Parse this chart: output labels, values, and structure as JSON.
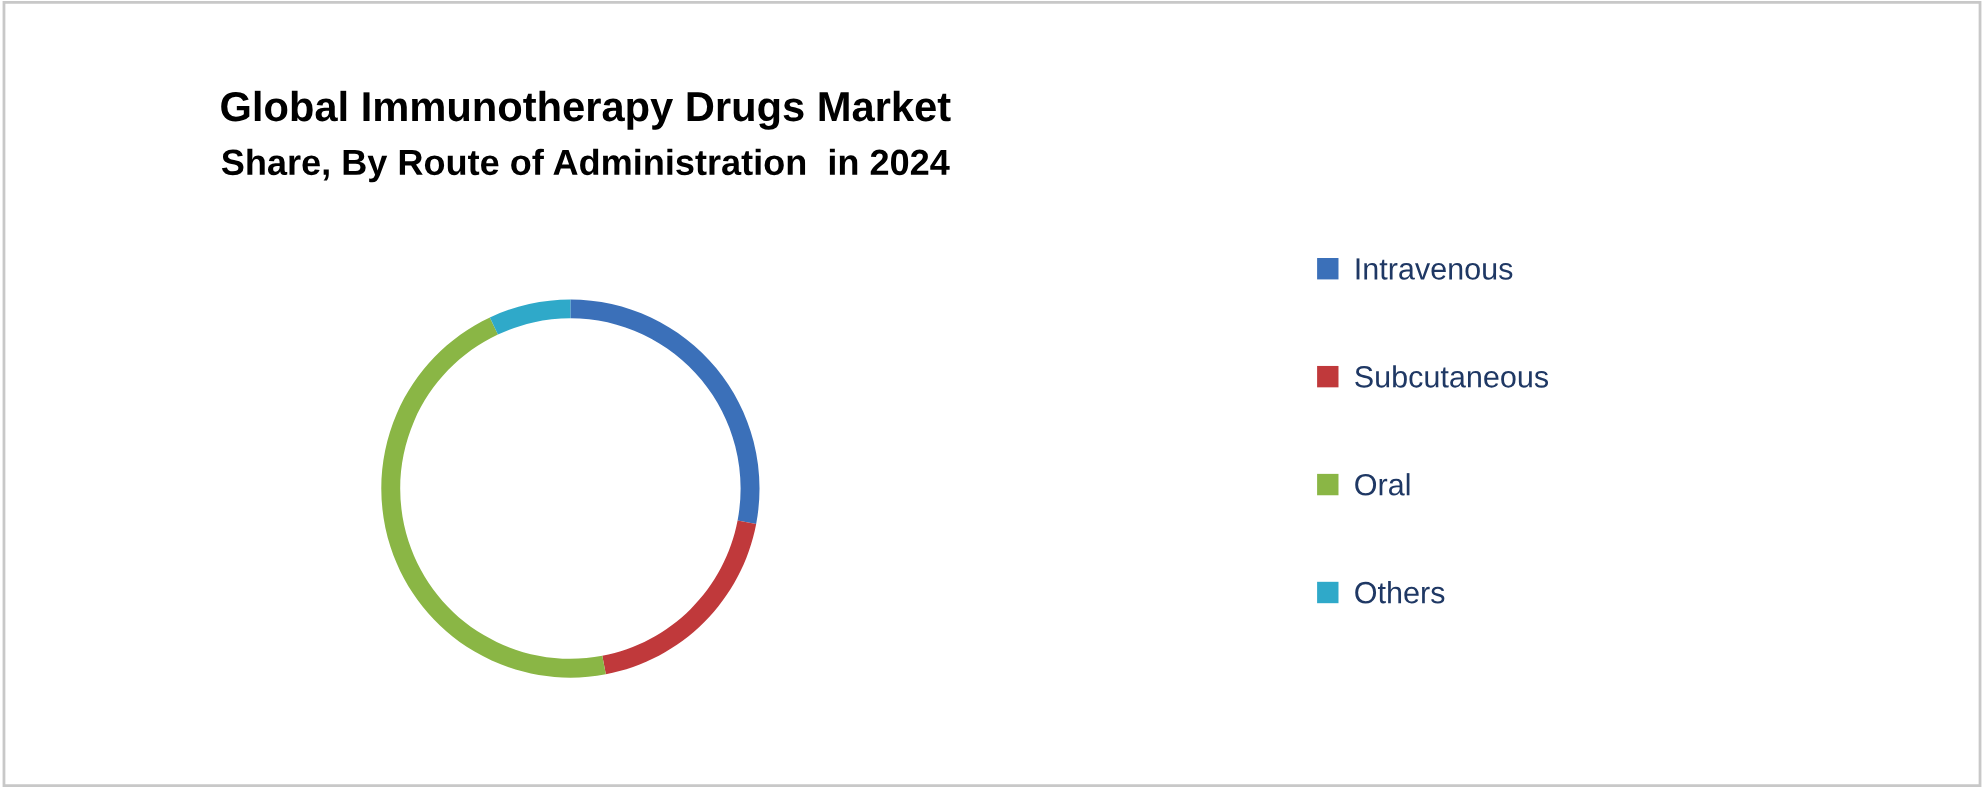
{
  "chart_data": {
    "type": "donut",
    "title": "Global Immunotherapy Drugs Market",
    "subtitle": "Share, By Route of Administration  in 2024",
    "categories": [
      "Intravenous",
      "Subcutaneous",
      "Oral",
      "Others"
    ],
    "values": [
      28,
      19,
      46,
      7
    ],
    "colors": [
      "#3b70b9",
      "#c0393b",
      "#8ab645",
      "#2fa9c9"
    ],
    "legend": "right"
  }
}
